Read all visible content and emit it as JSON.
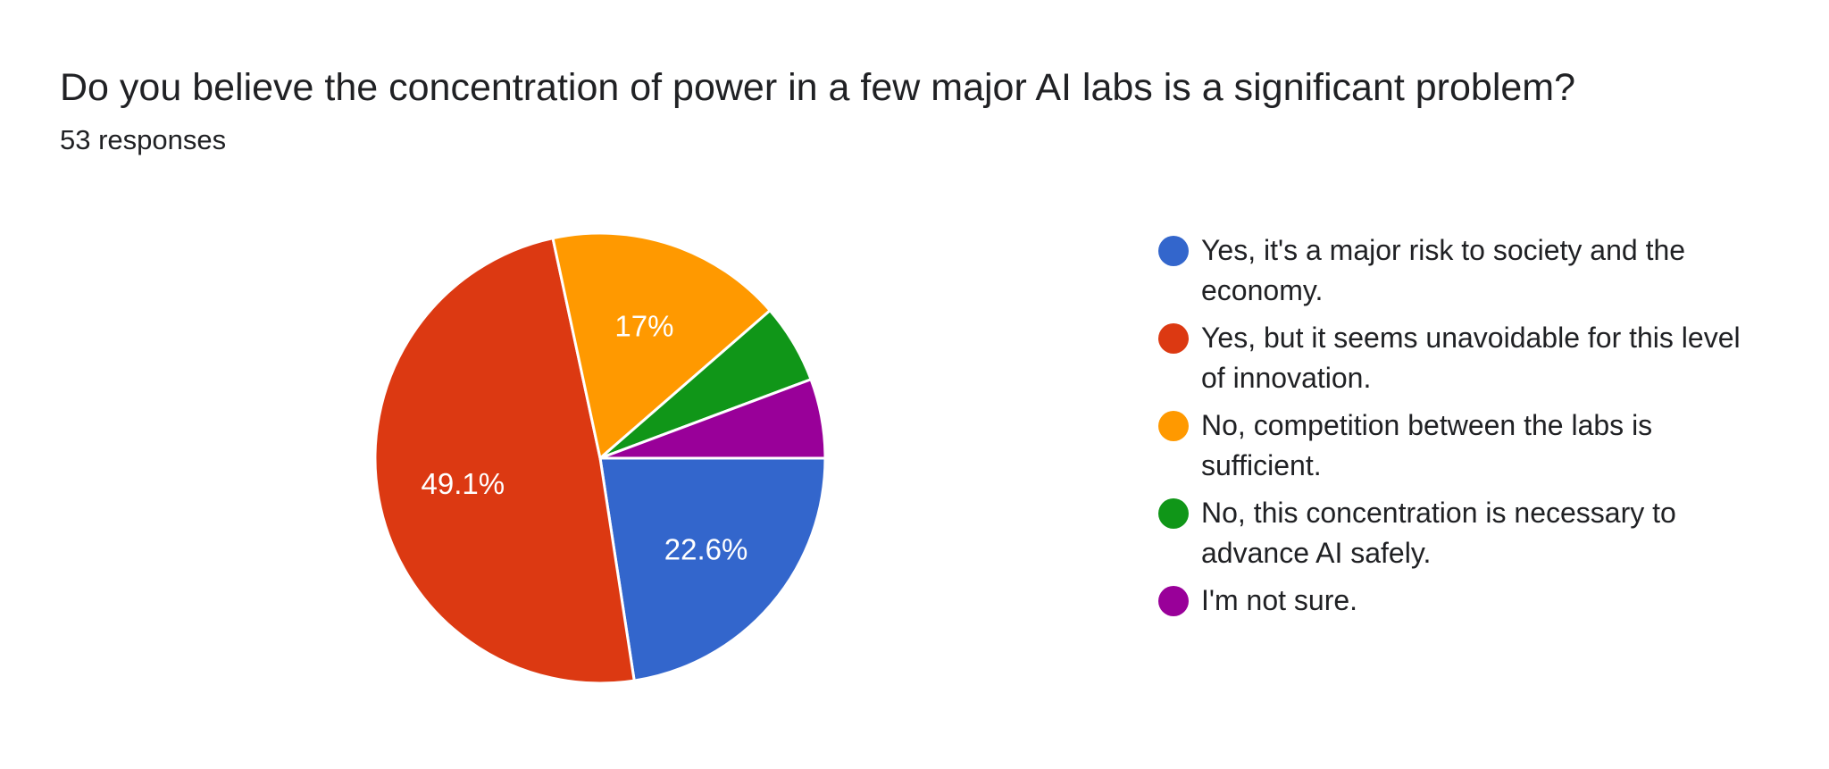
{
  "question": {
    "title": "Do you believe the concentration of power in a few major AI labs is a significant problem?",
    "responses": "53 responses"
  },
  "chart_data": {
    "type": "pie",
    "categories": [
      "Yes, it's a major risk to society and the economy.",
      "Yes, but it seems unavoidable for this level of innovation.",
      "No, competition between the labs is sufficient.",
      "No, this concentration is necessary to advance AI safely.",
      "I'm not sure."
    ],
    "values": [
      22.6,
      49.1,
      17,
      5.7,
      5.7
    ],
    "labels": [
      "22.6%",
      "49.1%",
      "17%",
      "",
      ""
    ],
    "colors": [
      "#3366cc",
      "#dc3912",
      "#ff9900",
      "#109618",
      "#990099"
    ],
    "legend_position": "right"
  }
}
